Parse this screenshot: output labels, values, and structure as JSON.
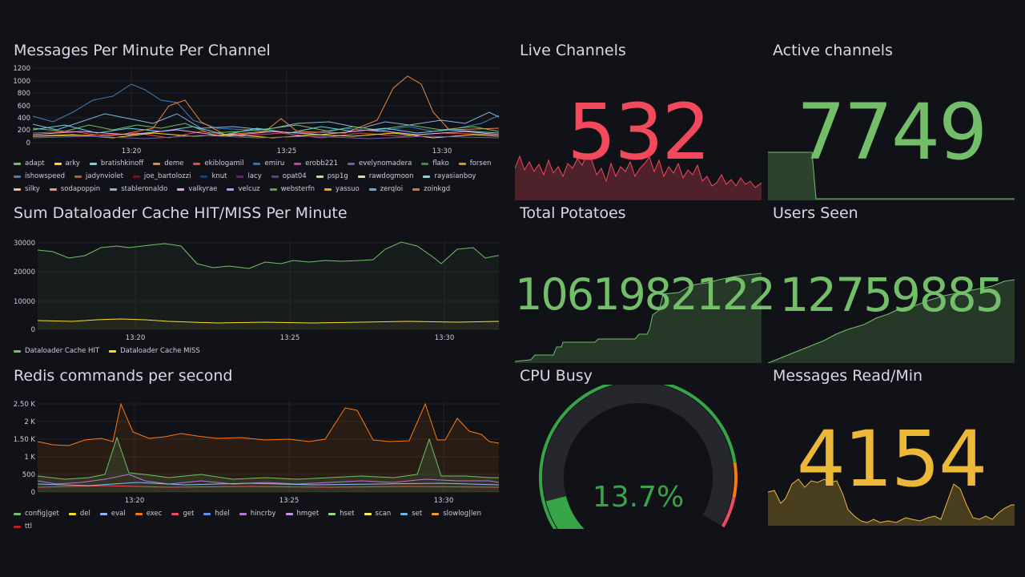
{
  "colors": {
    "bg": "#111217",
    "text": "#ccccdc",
    "grid": "#202226",
    "red": "#f2495c",
    "green": "#73bf69",
    "yellow": "#fade2a",
    "gold": "#ebb839",
    "orange": "#ff780a",
    "blue": "#5794f2"
  },
  "messages_panel": {
    "title": "Messages Per Minute Per Channel",
    "y_ticks": [
      "1200",
      "1000",
      "800",
      "600",
      "400",
      "200",
      "0"
    ],
    "x_ticks": [
      "13:20",
      "13:25",
      "13:30"
    ],
    "legend": [
      {
        "name": "adapt",
        "color": "#73bf69"
      },
      {
        "name": "arky",
        "color": "#fade2a"
      },
      {
        "name": "bratishkinoff",
        "color": "#6ed0e0"
      },
      {
        "name": "deme",
        "color": "#ef843c"
      },
      {
        "name": "ekiblogamil",
        "color": "#e24d42"
      },
      {
        "name": "emiru",
        "color": "#1f78c1"
      },
      {
        "name": "erobb221",
        "color": "#ba43a9"
      },
      {
        "name": "evelynomadera",
        "color": "#705da0"
      },
      {
        "name": "flako",
        "color": "#508642"
      },
      {
        "name": "forsen",
        "color": "#cca300"
      },
      {
        "name": "ishowspeed",
        "color": "#447ebc"
      },
      {
        "name": "jadynviolet",
        "color": "#c15c17"
      },
      {
        "name": "joe_bartolozzi",
        "color": "#890f02"
      },
      {
        "name": "knut",
        "color": "#0a437c"
      },
      {
        "name": "lacy",
        "color": "#6d1f62"
      },
      {
        "name": "opat04",
        "color": "#584477"
      },
      {
        "name": "psp1g",
        "color": "#b7dbab"
      },
      {
        "name": "rawdogmoon",
        "color": "#f4d598"
      },
      {
        "name": "rayasianboy",
        "color": "#70dbed"
      },
      {
        "name": "silky",
        "color": "#f9ba8f"
      },
      {
        "name": "sodapoppin",
        "color": "#f29191"
      },
      {
        "name": "stableronaldo",
        "color": "#82b5d8"
      },
      {
        "name": "valkyrae",
        "color": "#e5a8e2"
      },
      {
        "name": "velcuz",
        "color": "#aea2e0"
      },
      {
        "name": "websterfn",
        "color": "#629e51"
      },
      {
        "name": "yassuo",
        "color": "#e5ac0e"
      },
      {
        "name": "zerqloi",
        "color": "#64b0c8"
      },
      {
        "name": "zoinkgd",
        "color": "#e0752d"
      }
    ]
  },
  "cache_panel": {
    "title": "Sum Dataloader Cache HIT/MISS Per Minute",
    "y_ticks": [
      "30000",
      "20000",
      "10000",
      "0"
    ],
    "x_ticks": [
      "13:20",
      "13:25",
      "13:30"
    ],
    "legend": [
      {
        "name": "Dataloader Cache HIT",
        "color": "#73bf69"
      },
      {
        "name": "Dataloader Cache MISS",
        "color": "#fade2a"
      }
    ]
  },
  "redis_panel": {
    "title": "Redis commands per second",
    "y_ticks": [
      "2.50 K",
      "2 K",
      "1.50 K",
      "1 K",
      "500",
      "0"
    ],
    "x_ticks": [
      "13:20",
      "13:25",
      "13:30"
    ],
    "legend": [
      {
        "name": "config|get",
        "color": "#73bf69"
      },
      {
        "name": "del",
        "color": "#fade2a"
      },
      {
        "name": "eval",
        "color": "#8ab8ff"
      },
      {
        "name": "exec",
        "color": "#ff780a"
      },
      {
        "name": "get",
        "color": "#f2495c"
      },
      {
        "name": "hdel",
        "color": "#5794f2"
      },
      {
        "name": "hincrby",
        "color": "#b877d9"
      },
      {
        "name": "hmget",
        "color": "#ca95e5"
      },
      {
        "name": "hset",
        "color": "#96d98d"
      },
      {
        "name": "scan",
        "color": "#ffee52"
      },
      {
        "name": "set",
        "color": "#66b9f6"
      },
      {
        "name": "slowlog|len",
        "color": "#ff9830"
      },
      {
        "name": "ttl",
        "color": "#c4162a"
      }
    ]
  },
  "live_channels": {
    "title": "Live Channels",
    "value": "532",
    "color": "#f2495c"
  },
  "active_channels": {
    "title": "Active channels",
    "value": "7749",
    "color": "#73bf69"
  },
  "total_potatoes": {
    "title": "Total Potatoes",
    "value": "1061982122",
    "color": "#73bf69"
  },
  "users_seen": {
    "title": "Users Seen",
    "value": "12759885",
    "color": "#73bf69"
  },
  "cpu_busy": {
    "title": "CPU Busy",
    "value": "13.7%",
    "percent": 13.7,
    "color": "#37a447"
  },
  "messages_read": {
    "title": "Messages Read/Min",
    "value": "4154",
    "color": "#ebb839"
  }
}
